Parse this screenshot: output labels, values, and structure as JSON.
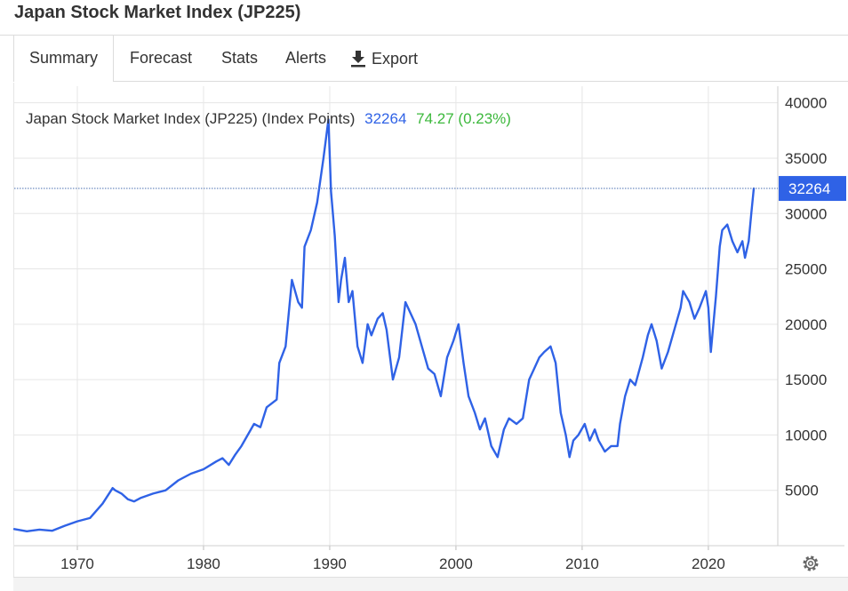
{
  "page": {
    "title": "Japan Stock Market Index (JP225)"
  },
  "tabs": [
    {
      "label": "Summary",
      "active": true
    },
    {
      "label": "Forecast"
    },
    {
      "label": "Stats"
    },
    {
      "label": "Alerts"
    },
    {
      "label": "Export",
      "icon": "download-icon"
    }
  ],
  "colors": {
    "line": "#2f62e6",
    "change": "#3cb83c",
    "tag_bg": "#2f62e6",
    "grid": "#e6e6e6"
  },
  "chart_data": {
    "type": "line",
    "title": "Japan Stock Market Index (JP225) (Index Points)",
    "last_value_label": "32264",
    "change_label": "74.27 (0.23%)",
    "current_value": 32264,
    "xlabel": "",
    "ylabel": "",
    "x_ticks": [
      "1970",
      "1980",
      "1990",
      "2000",
      "2010",
      "2020"
    ],
    "y_ticks": [
      "5000",
      "10000",
      "15000",
      "20000",
      "25000",
      "30000",
      "35000",
      "40000"
    ],
    "xlim": [
      1965,
      2025.5
    ],
    "ylim": [
      0,
      41500
    ],
    "grid": true,
    "series": [
      {
        "name": "JP225",
        "x": [
          1965.0,
          1966.0,
          1967.0,
          1968.0,
          1969.0,
          1970.0,
          1971.0,
          1972.0,
          1972.8,
          1973.0,
          1973.5,
          1974.0,
          1974.5,
          1975.0,
          1976.0,
          1977.0,
          1978.0,
          1979.0,
          1980.0,
          1981.0,
          1981.5,
          1982.0,
          1982.5,
          1983.0,
          1984.0,
          1984.5,
          1985.0,
          1985.8,
          1986.0,
          1986.5,
          1987.0,
          1987.5,
          1987.8,
          1988.0,
          1988.5,
          1989.0,
          1989.5,
          1989.9,
          1990.1,
          1990.4,
          1990.7,
          1990.9,
          1991.2,
          1991.5,
          1991.8,
          1992.2,
          1992.6,
          1993.0,
          1993.3,
          1993.8,
          1994.2,
          1994.5,
          1995.0,
          1995.5,
          1996.0,
          1996.4,
          1996.8,
          1997.3,
          1997.8,
          1998.3,
          1998.8,
          1999.3,
          1999.8,
          2000.2,
          2000.6,
          2001.0,
          2001.5,
          2001.9,
          2002.3,
          2002.8,
          2003.3,
          2003.8,
          2004.2,
          2004.8,
          2005.3,
          2005.8,
          2006.2,
          2006.6,
          2007.0,
          2007.5,
          2007.9,
          2008.3,
          2008.7,
          2009.0,
          2009.3,
          2009.7,
          2010.2,
          2010.6,
          2011.0,
          2011.3,
          2011.8,
          2012.3,
          2012.8,
          2013.0,
          2013.4,
          2013.8,
          2014.2,
          2014.8,
          2015.2,
          2015.5,
          2015.9,
          2016.3,
          2016.8,
          2017.3,
          2017.8,
          2018.0,
          2018.5,
          2018.9,
          2019.3,
          2019.8,
          2020.0,
          2020.2,
          2020.6,
          2020.9,
          2021.1,
          2021.5,
          2021.9,
          2022.3,
          2022.7,
          2022.9,
          2023.2,
          2023.4,
          2023.6
        ],
        "y": [
          1500,
          1300,
          1450,
          1350,
          1800,
          2200,
          2500,
          3800,
          5200,
          5000,
          4700,
          4200,
          4000,
          4300,
          4700,
          5000,
          5900,
          6500,
          6900,
          7600,
          7900,
          7300,
          8200,
          9000,
          11000,
          10700,
          12500,
          13200,
          16500,
          18000,
          24000,
          22000,
          21500,
          27000,
          28500,
          31000,
          35000,
          38500,
          32000,
          28000,
          22000,
          24000,
          26000,
          22000,
          23000,
          18000,
          16500,
          20000,
          19000,
          20500,
          21000,
          19500,
          15000,
          17000,
          22000,
          21000,
          20000,
          18000,
          16000,
          15500,
          13500,
          17000,
          18500,
          20000,
          16500,
          13500,
          12000,
          10500,
          11500,
          9000,
          8000,
          10500,
          11500,
          11000,
          11500,
          15000,
          16000,
          17000,
          17500,
          18000,
          16500,
          12000,
          10000,
          8000,
          9500,
          10000,
          11000,
          9500,
          10500,
          9500,
          8500,
          9000,
          9000,
          11000,
          13500,
          15000,
          14500,
          17000,
          19000,
          20000,
          18500,
          16000,
          17500,
          19500,
          21500,
          23000,
          22000,
          20500,
          21500,
          23000,
          21500,
          17500,
          22500,
          27000,
          28500,
          29000,
          27500,
          26500,
          27500,
          26000,
          27500,
          30000,
          32264
        ]
      }
    ]
  }
}
